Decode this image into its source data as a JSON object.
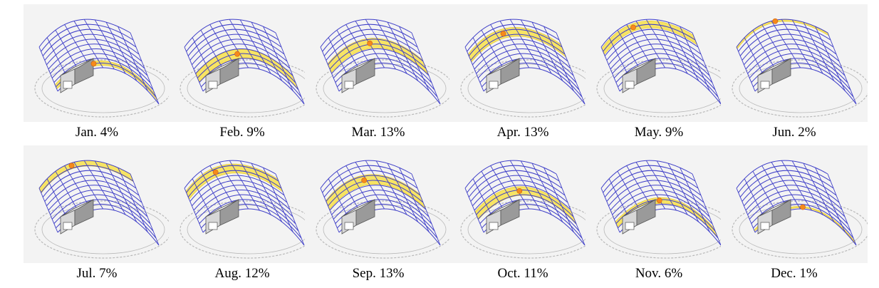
{
  "colors": {
    "background": "#ffffff",
    "panel_background": "#f3f3f3",
    "dome_grid": "#3f3fc8",
    "sun_path_band": "#f7e14a",
    "sun_marker": "#f58a1c",
    "building": "#9a9a9a",
    "compass_ring": "#b9b9b9"
  },
  "panels": [
    {
      "month": "Jan.",
      "percent": "4%",
      "label": "Jan. 4%",
      "share": 0.04,
      "band_position": 0.9,
      "band_width": 0.1,
      "sun_along": 0.38
    },
    {
      "month": "Feb.",
      "percent": "9%",
      "label": "Feb. 9%",
      "share": 0.09,
      "band_position": 0.7,
      "band_width": 0.18,
      "sun_along": 0.42
    },
    {
      "month": "Mar.",
      "percent": "13%",
      "label": "Mar. 13%",
      "share": 0.13,
      "band_position": 0.48,
      "band_width": 0.2,
      "sun_along": 0.45
    },
    {
      "month": "Apr.",
      "percent": "13%",
      "label": "Apr. 13%",
      "share": 0.13,
      "band_position": 0.25,
      "band_width": 0.18,
      "sun_along": 0.4
    },
    {
      "month": "May.",
      "percent": "9%",
      "label": "May. 9%",
      "share": 0.09,
      "band_position": 0.1,
      "band_width": 0.14,
      "sun_along": 0.38
    },
    {
      "month": "Jun.",
      "percent": "2%",
      "label": "Jun. 2%",
      "share": 0.02,
      "band_position": 0.02,
      "band_width": 0.04,
      "sun_along": 0.48
    },
    {
      "month": "Jul.",
      "percent": "7%",
      "label": "Jul. 7%",
      "share": 0.07,
      "band_position": 0.05,
      "band_width": 0.12,
      "sun_along": 0.4
    },
    {
      "month": "Aug.",
      "percent": "12%",
      "label": "Aug. 12%",
      "share": 0.12,
      "band_position": 0.16,
      "band_width": 0.18,
      "sun_along": 0.35
    },
    {
      "month": "Sep.",
      "percent": "13%",
      "label": "Sep. 13%",
      "share": 0.13,
      "band_position": 0.38,
      "band_width": 0.2,
      "sun_along": 0.42
    },
    {
      "month": "Oct.",
      "percent": "11%",
      "label": "Oct. 11%",
      "share": 0.11,
      "band_position": 0.62,
      "band_width": 0.18,
      "sun_along": 0.46
    },
    {
      "month": "Nov.",
      "percent": "6%",
      "label": "Nov. 6%",
      "share": 0.06,
      "band_position": 0.82,
      "band_width": 0.12,
      "sun_along": 0.44
    },
    {
      "month": "Dec.",
      "percent": "1%",
      "label": "Dec. 1%",
      "share": 0.01,
      "band_position": 0.96,
      "band_width": 0.03,
      "sun_along": 0.48
    }
  ]
}
